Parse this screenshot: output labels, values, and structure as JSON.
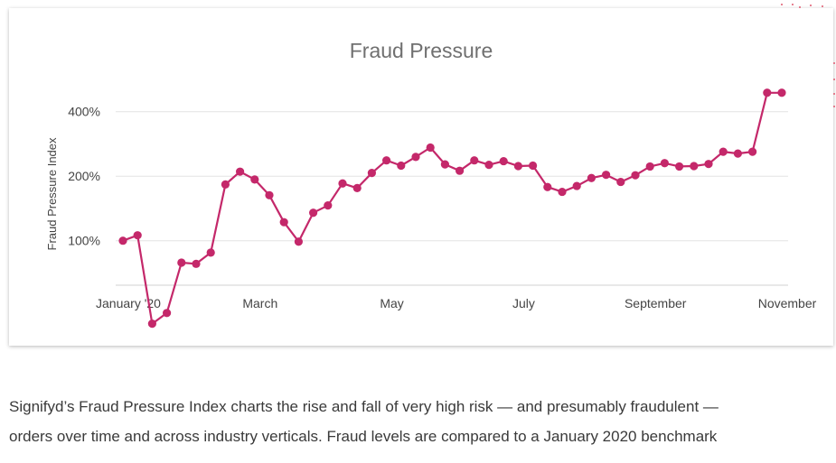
{
  "chart_data": {
    "type": "line",
    "title": "Fraud Pressure",
    "ylabel": "Fraud Pressure Index",
    "xlabel": "",
    "y_ticks": [
      {
        "value": 100,
        "label": "100%"
      },
      {
        "value": 200,
        "label": "200%"
      },
      {
        "value": 400,
        "label": "400%"
      }
    ],
    "x_ticks": [
      {
        "index": 0,
        "label": "January '20"
      },
      {
        "index": 9,
        "label": "March"
      },
      {
        "index": 18,
        "label": "May"
      },
      {
        "index": 27,
        "label": "July"
      },
      {
        "index": 36,
        "label": "September"
      },
      {
        "index": 45,
        "label": "November"
      }
    ],
    "y_scale": "log",
    "ylim": [
      62,
      560
    ],
    "grid": true,
    "legend": "none",
    "series": [
      {
        "color": "#c4286a",
        "values": [
          100,
          106,
          41,
          46,
          79,
          78,
          88,
          183,
          210,
          193,
          163,
          122,
          99,
          135,
          146,
          185,
          176,
          207,
          237,
          224,
          246,
          272,
          227,
          212,
          237,
          226,
          235,
          223,
          224,
          178,
          169,
          180,
          196,
          203,
          188,
          202,
          222,
          230,
          222,
          223,
          228,
          260,
          255,
          260,
          490,
          490
        ]
      }
    ]
  },
  "caption": {
    "line1": "Signifyd’s Fraud Pressure Index charts the rise and fall of very high risk — and presumably fraudulent —",
    "line2": "orders over time and across industry verticals. Fraud levels are compared to a January 2020 benchmark"
  }
}
